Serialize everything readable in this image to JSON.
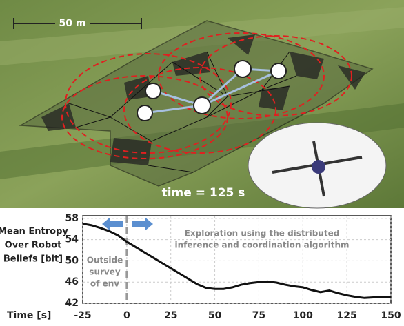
{
  "overlay": {
    "scale_label": "50 m",
    "time_label": "time = 125 s"
  },
  "chart_data": {
    "type": "line",
    "x_label": "Time [s]",
    "y_label_lines": [
      "Mean Entropy",
      "Over Robot",
      "Beliefs [bit]"
    ],
    "annotation_left_lines": [
      "Outside",
      "survey",
      "of env"
    ],
    "annotation_right_lines": [
      "Exploration using the distributed",
      "inference and coordination algorithm"
    ],
    "x": [
      -25,
      -20,
      -15,
      -10,
      -5,
      0,
      5,
      10,
      15,
      20,
      25,
      30,
      35,
      40,
      45,
      50,
      55,
      60,
      65,
      70,
      75,
      80,
      85,
      90,
      95,
      100,
      105,
      110,
      115,
      120,
      125,
      130,
      135,
      140,
      145,
      150
    ],
    "values": [
      57,
      56.7,
      56.2,
      55.6,
      54.8,
      53.6,
      52.6,
      51.6,
      50.6,
      49.6,
      48.6,
      47.6,
      46.6,
      45.6,
      44.9,
      44.7,
      44.7,
      45,
      45.5,
      45.8,
      46,
      46.1,
      45.9,
      45.5,
      45.2,
      45,
      44.5,
      44.1,
      44.4,
      43.9,
      43.5,
      43.2,
      43,
      43.1,
      43.2,
      43.2
    ],
    "color": "#111111",
    "xlim": [
      -25,
      150
    ],
    "ylim": [
      42,
      58.5
    ],
    "xticks": [
      -25,
      0,
      25,
      50,
      75,
      100,
      125,
      150
    ],
    "yticks": [
      42,
      46,
      50,
      54,
      58
    ],
    "grid": true
  }
}
